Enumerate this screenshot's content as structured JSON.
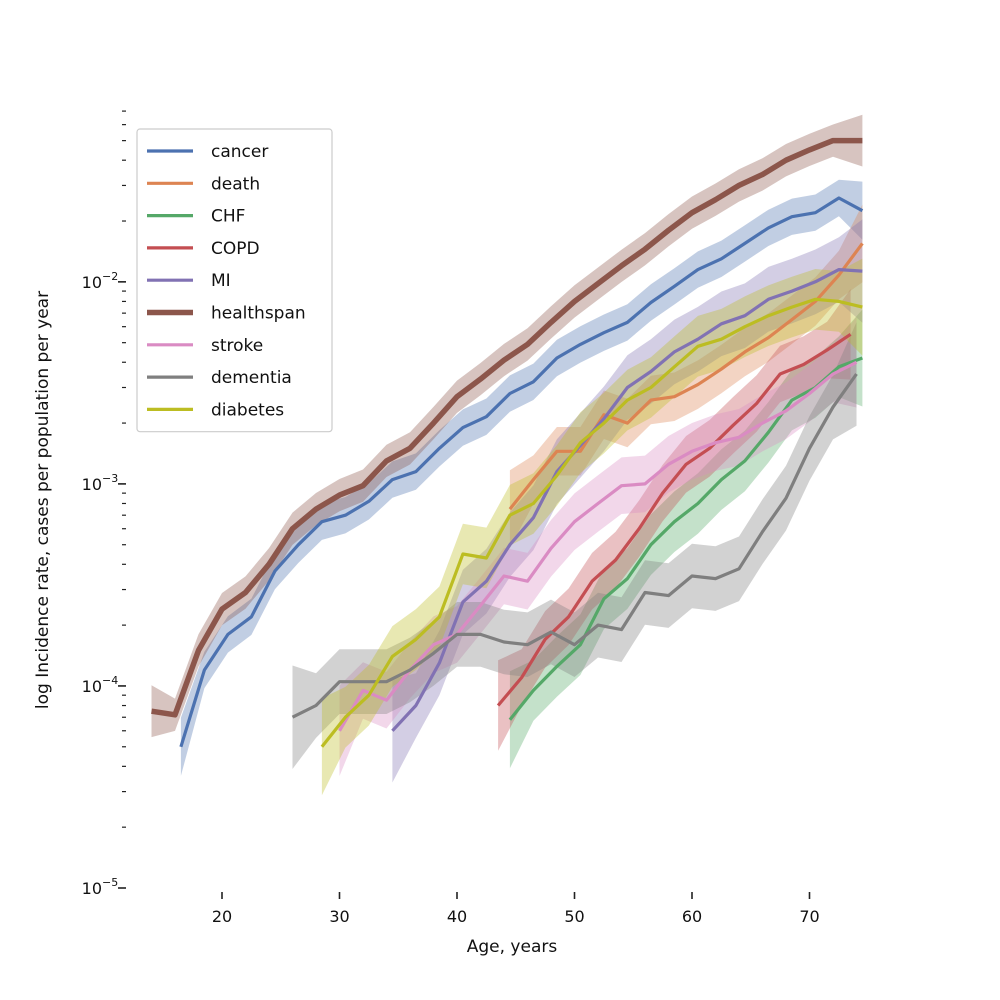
{
  "chart_data": {
    "type": "line",
    "title": "",
    "xlabel": "Age, years",
    "ylabel": "log Incidence rate, cases per population per year",
    "xlim": [
      12,
      76
    ],
    "ylim_log10": [
      -5,
      -1.1
    ],
    "x_ticks": [
      20,
      30,
      40,
      50,
      60,
      70
    ],
    "x_tick_labels": [
      "20",
      "30",
      "40",
      "50",
      "60",
      "70"
    ],
    "y_ticks_log10": [
      -5,
      -4,
      -3,
      -2
    ],
    "y_tick_labels": [
      "10",
      "10",
      "10",
      "10"
    ],
    "y_tick_exponents": [
      "−5",
      "−4",
      "−3",
      "−2"
    ],
    "legend_location": "top-left",
    "series": [
      {
        "name": "cancer",
        "color": "#4c72b0",
        "x": [
          16.5,
          18.5,
          20.5,
          22.5,
          24.5,
          26.5,
          28.5,
          30.5,
          32.5,
          34.5,
          36.5,
          38.5,
          40.5,
          42.5,
          44.5,
          46.5,
          48.5,
          50.5,
          52.5,
          54.5,
          56.5,
          58.5,
          60.5,
          62.5,
          64.5,
          66.5,
          68.5,
          70.5,
          72.5,
          74.5
        ],
        "y": [
          5e-05,
          0.00012,
          0.00018,
          0.00022,
          0.00037,
          0.0005,
          0.00065,
          0.0007,
          0.00082,
          0.00105,
          0.00115,
          0.0015,
          0.0019,
          0.00215,
          0.0028,
          0.0032,
          0.0042,
          0.0049,
          0.0056,
          0.0063,
          0.0079,
          0.0095,
          0.0115,
          0.013,
          0.0155,
          0.0185,
          0.021,
          0.022,
          0.026,
          0.0225
        ],
        "band": 0.09
      },
      {
        "name": "death",
        "color": "#dd8452",
        "x": [
          44.5,
          46.5,
          48.5,
          50.5,
          52.5,
          54.5,
          56.5,
          58.5,
          60.5,
          62.5,
          64.5,
          66.5,
          68.5,
          70.5,
          72.5,
          74.5
        ],
        "y": [
          0.00075,
          0.00105,
          0.00145,
          0.00145,
          0.0022,
          0.002,
          0.0026,
          0.0027,
          0.0031,
          0.0037,
          0.0045,
          0.0053,
          0.0065,
          0.008,
          0.0108,
          0.0155
        ],
        "band": 0.12
      },
      {
        "name": "CHF",
        "color": "#55a868",
        "x": [
          44.5,
          46.5,
          48.5,
          50.5,
          52.5,
          54.5,
          56.5,
          58.5,
          60.5,
          62.5,
          64.5,
          66.5,
          68.5,
          70.5,
          72.5,
          74.5
        ],
        "y": [
          6.8e-05,
          9.5e-05,
          0.000125,
          0.00016,
          0.00027,
          0.00034,
          0.0005,
          0.00065,
          0.0008,
          0.00105,
          0.0013,
          0.0018,
          0.0026,
          0.003,
          0.0038,
          0.0042
        ],
        "band": 0.15
      },
      {
        "name": "COPD",
        "color": "#c44e52",
        "x": [
          43.5,
          45.5,
          47.5,
          49.5,
          51.5,
          53.5,
          55.5,
          57.5,
          59.5,
          61.5,
          63.5,
          65.5,
          67.5,
          69.5,
          71.5,
          73.5
        ],
        "y": [
          8e-05,
          0.00011,
          0.00017,
          0.00022,
          0.00033,
          0.00042,
          0.0006,
          0.0009,
          0.00125,
          0.0015,
          0.00195,
          0.0025,
          0.0035,
          0.0039,
          0.0046,
          0.0055
        ],
        "band": 0.14
      },
      {
        "name": "MI",
        "color": "#8172b3",
        "x": [
          34.5,
          36.5,
          38.5,
          40.5,
          42.5,
          44.5,
          46.5,
          48.5,
          50.5,
          52.5,
          54.5,
          56.5,
          58.5,
          60.5,
          62.5,
          64.5,
          66.5,
          68.5,
          70.5,
          72.5,
          74.5
        ],
        "y": [
          6e-05,
          8e-05,
          0.00013,
          0.00026,
          0.00033,
          0.0005,
          0.00068,
          0.00115,
          0.00155,
          0.0021,
          0.003,
          0.0036,
          0.0045,
          0.0052,
          0.0062,
          0.0068,
          0.0082,
          0.009,
          0.01,
          0.0115,
          0.0113
        ],
        "band": 0.16
      },
      {
        "name": "healthspan",
        "color": "#8c564b",
        "x": [
          14,
          16,
          18,
          20,
          22,
          24,
          26,
          28,
          30,
          32,
          34,
          36,
          38,
          40,
          42,
          44,
          46,
          48,
          50,
          52,
          54,
          56,
          58,
          60,
          62,
          64,
          66,
          68,
          70,
          72,
          74.5
        ],
        "y": [
          7.5e-05,
          7.2e-05,
          0.00015,
          0.00024,
          0.00029,
          0.0004,
          0.0006,
          0.00075,
          0.00088,
          0.00098,
          0.0013,
          0.0015,
          0.002,
          0.0027,
          0.0033,
          0.0041,
          0.0049,
          0.0063,
          0.008,
          0.0098,
          0.012,
          0.0145,
          0.018,
          0.022,
          0.0255,
          0.03,
          0.034,
          0.04,
          0.045,
          0.05,
          0.05
        ],
        "band": 0.08,
        "thick": true
      },
      {
        "name": "stroke",
        "color": "#da8bc3",
        "x": [
          30,
          32,
          34,
          36,
          38,
          40,
          42,
          44,
          46,
          48,
          50,
          52,
          54,
          56,
          58,
          60,
          62,
          64,
          66,
          68,
          70,
          72,
          74
        ],
        "y": [
          6e-05,
          9.5e-05,
          8.5e-05,
          0.00012,
          0.00016,
          0.00018,
          0.00025,
          0.00035,
          0.00033,
          0.00048,
          0.00065,
          0.0008,
          0.00098,
          0.001,
          0.00125,
          0.00145,
          0.0016,
          0.0017,
          0.002,
          0.0023,
          0.0028,
          0.0035,
          0.004
        ],
        "band": 0.14
      },
      {
        "name": "dementia",
        "color": "#7f7f7f",
        "x": [
          26,
          28,
          30,
          32,
          34,
          36,
          38,
          40,
          42,
          44,
          46,
          48,
          50,
          52,
          54,
          56,
          58,
          60,
          62,
          64,
          66,
          68,
          70,
          72,
          74
        ],
        "y": [
          7e-05,
          8e-05,
          0.000105,
          0.000105,
          0.000105,
          0.00012,
          0.000145,
          0.00018,
          0.00018,
          0.000165,
          0.00016,
          0.000185,
          0.00016,
          0.0002,
          0.00019,
          0.00029,
          0.00028,
          0.00035,
          0.00034,
          0.00038,
          0.00058,
          0.00085,
          0.0015,
          0.0024,
          0.0035
        ],
        "band": 0.16
      },
      {
        "name": "diabetes",
        "color": "#bcbd22",
        "x": [
          28.5,
          30.5,
          32.5,
          34.5,
          36.5,
          38.5,
          40.5,
          42.5,
          44.5,
          46.5,
          48.5,
          50.5,
          52.5,
          54.5,
          56.5,
          58.5,
          60.5,
          62.5,
          64.5,
          66.5,
          68.5,
          70.5,
          72.5,
          74.5
        ],
        "y": [
          5e-05,
          7e-05,
          9e-05,
          0.00014,
          0.00017,
          0.00022,
          0.00045,
          0.00043,
          0.0007,
          0.0008,
          0.0011,
          0.0016,
          0.002,
          0.0026,
          0.003,
          0.0038,
          0.0048,
          0.0052,
          0.006,
          0.0068,
          0.0075,
          0.0082,
          0.008,
          0.0075
        ],
        "band": 0.15
      }
    ]
  }
}
